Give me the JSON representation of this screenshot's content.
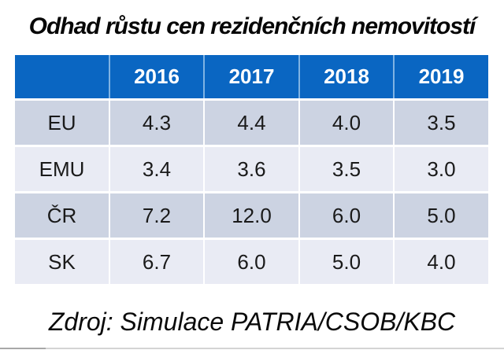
{
  "chart_data": {
    "type": "table",
    "title": "Odhad růstu cen rezidenčních nemovitostí",
    "columns": [
      "2016",
      "2017",
      "2018",
      "2019"
    ],
    "rows": [
      {
        "label": "EU",
        "values": [
          "4.3",
          "4.4",
          "4.0",
          "3.5"
        ]
      },
      {
        "label": "EMU",
        "values": [
          "3.4",
          "3.6",
          "3.5",
          "3.0"
        ]
      },
      {
        "label": "ČR",
        "values": [
          "7.2",
          "12.0",
          "6.0",
          "5.0"
        ]
      },
      {
        "label": "SK",
        "values": [
          "6.7",
          "6.0",
          "5.0",
          "4.0"
        ]
      }
    ],
    "source": "Zdroj: Simulace PATRIA/CSOB/KBC"
  },
  "colors": {
    "header_bg": "#0a66c2",
    "header_divider": "#7fb3e3",
    "row_dark": "#ccd3e2",
    "row_light": "#e9ebf4",
    "text": "#1a1a1a"
  }
}
